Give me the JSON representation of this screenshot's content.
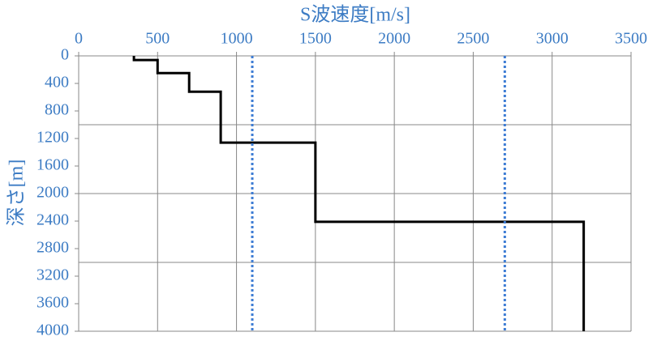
{
  "chart_data": {
    "type": "line",
    "title": "S波速度[m/s]",
    "y_label": "深さ[m]",
    "x_axis_position": "top",
    "y_inverted": true,
    "xlim": [
      0,
      3500
    ],
    "xticks": [
      0,
      500,
      1000,
      1500,
      2000,
      2500,
      3000,
      3500
    ],
    "ylim": [
      0,
      4000
    ],
    "yticks": [
      0,
      400,
      800,
      1200,
      1600,
      2000,
      2400,
      2800,
      3200,
      3600,
      4000
    ],
    "xgrid": [
      0,
      500,
      1000,
      1500,
      2000,
      2500,
      3000,
      3500
    ],
    "ygrid": [
      1000,
      2000,
      3000,
      4000
    ],
    "text_color": "#3d7cc4",
    "series": [
      {
        "color": "#000000",
        "style": "solid",
        "x": [
          350,
          350,
          500,
          500,
          700,
          700,
          900,
          900,
          1500,
          1500,
          3200,
          3200
        ],
        "values": [
          0,
          60,
          60,
          250,
          250,
          520,
          520,
          1260,
          1260,
          2410,
          2410,
          4000
        ]
      },
      {
        "color": "#3d7cd4",
        "style": "dotted",
        "x": [
          1100,
          1100
        ],
        "values": [
          0,
          4000
        ]
      },
      {
        "color": "#3d7cd4",
        "style": "dotted",
        "x": [
          2700,
          2700
        ],
        "values": [
          0,
          4000
        ]
      }
    ]
  }
}
